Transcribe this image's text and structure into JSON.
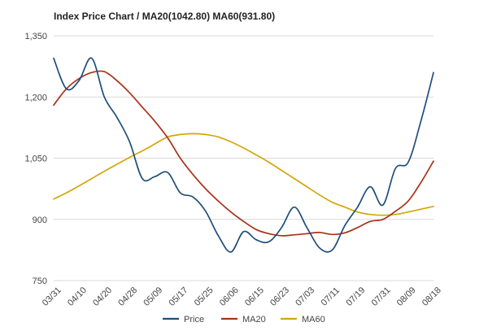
{
  "chart_data": {
    "type": "line",
    "title": "Index Price Chart / MA20(1042.80) MA60(931.80)",
    "xlabel": "",
    "ylabel": "",
    "ylim": [
      750,
      1350
    ],
    "yticks": [
      750,
      900,
      1050,
      1200,
      1350
    ],
    "ytick_labels": [
      "750",
      "900",
      "1,050",
      "1,200",
      "1,350"
    ],
    "xticks": [
      "03/31",
      "04/10",
      "04/20",
      "04/28",
      "05/09",
      "05/17",
      "05/25",
      "06/06",
      "06/15",
      "06/23",
      "07/03",
      "07/11",
      "07/19",
      "07/31",
      "08/09",
      "08/18"
    ],
    "grid": true,
    "legend_position": "bottom",
    "series": [
      {
        "name": "Price",
        "color": "#1f4e79",
        "x": [
          0,
          0.5,
          1,
          1.5,
          2,
          2.5,
          3,
          3.5,
          4,
          4.5,
          5,
          5.5,
          6,
          6.5,
          7,
          7.5,
          8,
          8.5,
          9,
          9.5,
          10,
          10.5,
          11,
          11.5,
          12,
          12.5,
          13,
          13.5,
          14,
          14.5,
          15
        ],
        "y": [
          1295,
          1220,
          1240,
          1295,
          1200,
          1150,
          1090,
          1000,
          1005,
          1015,
          965,
          955,
          920,
          860,
          820,
          870,
          850,
          845,
          880,
          930,
          880,
          830,
          825,
          885,
          930,
          980,
          935,
          1025,
          1040,
          1140,
          1260
        ]
      },
      {
        "name": "MA20",
        "color": "#a93218",
        "x": [
          0,
          0.5,
          1,
          1.5,
          2,
          2.5,
          3,
          3.5,
          4,
          4.5,
          5,
          5.5,
          6,
          6.5,
          7,
          7.5,
          8,
          8.5,
          9,
          9.5,
          10,
          10.5,
          11,
          11.5,
          12,
          12.5,
          13,
          13.5,
          14,
          14.5,
          15
        ],
        "y": [
          1180,
          1220,
          1245,
          1260,
          1262,
          1240,
          1210,
          1175,
          1140,
          1100,
          1050,
          1010,
          975,
          945,
          918,
          895,
          875,
          865,
          860,
          862,
          865,
          868,
          863,
          867,
          880,
          895,
          900,
          920,
          945,
          990,
          1042.8
        ]
      },
      {
        "name": "MA60",
        "color": "#d4a60a",
        "x": [
          0,
          0.5,
          1,
          1.5,
          2,
          2.5,
          3,
          3.5,
          4,
          4.5,
          5,
          5.5,
          6,
          6.5,
          7,
          7.5,
          8,
          8.5,
          9,
          9.5,
          10,
          10.5,
          11,
          11.5,
          12,
          12.5,
          13,
          13.5,
          14,
          14.5,
          15
        ],
        "y": [
          950,
          965,
          982,
          1000,
          1018,
          1035,
          1052,
          1068,
          1085,
          1102,
          1108,
          1110,
          1108,
          1102,
          1090,
          1075,
          1058,
          1040,
          1020,
          1000,
          980,
          960,
          942,
          930,
          918,
          912,
          910,
          912,
          918,
          925,
          931.8
        ]
      }
    ]
  }
}
